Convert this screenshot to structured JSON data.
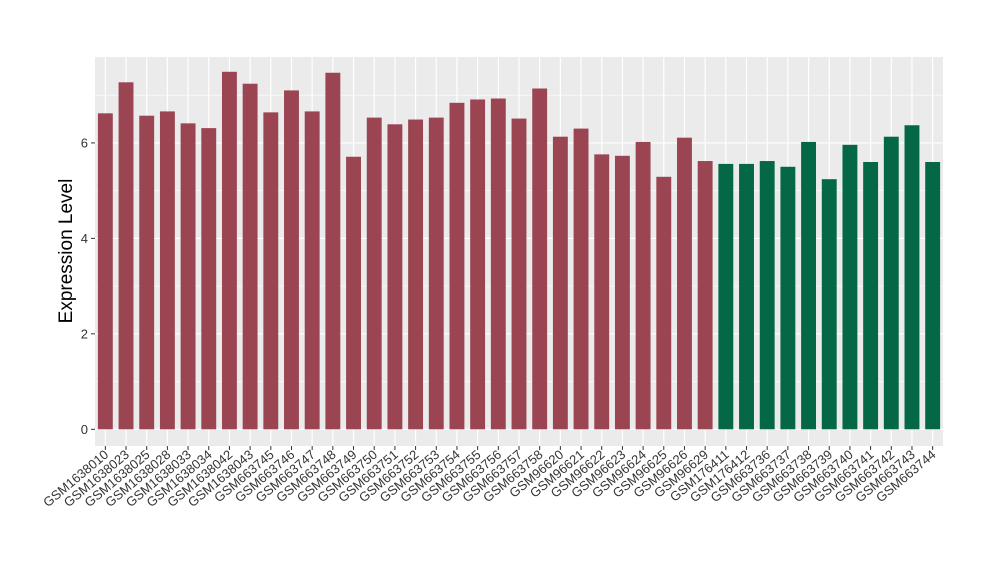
{
  "chart_data": {
    "type": "bar",
    "title": "",
    "xlabel": "",
    "ylabel": "Expression Level",
    "ylim": [
      -0.35,
      7.8
    ],
    "yticks": [
      0,
      2,
      4,
      6
    ],
    "grid": true,
    "background": "#ebebeb",
    "grid_color": "#ffffff",
    "colors": {
      "group1": "#9b4452",
      "group2": "#046746"
    },
    "categories": [
      "GSM1638010",
      "GSM1638023",
      "GSM1638025",
      "GSM1638028",
      "GSM1638033",
      "GSM1638034",
      "GSM1638042",
      "GSM1638043",
      "GSM663745",
      "GSM663746",
      "GSM663747",
      "GSM663748",
      "GSM663749",
      "GSM663750",
      "GSM663751",
      "GSM663752",
      "GSM663753",
      "GSM663754",
      "GSM663755",
      "GSM663756",
      "GSM663757",
      "GSM663758",
      "GSM96620",
      "GSM96621",
      "GSM96622",
      "GSM96623",
      "GSM96624",
      "GSM96625",
      "GSM96626",
      "GSM96629",
      "GSM176411",
      "GSM176412",
      "GSM663736",
      "GSM663737",
      "GSM663738",
      "GSM663739",
      "GSM663740",
      "GSM663741",
      "GSM663742",
      "GSM663743",
      "GSM663744"
    ],
    "values": [
      6.62,
      7.27,
      6.57,
      6.66,
      6.41,
      6.31,
      7.49,
      7.24,
      6.64,
      7.1,
      6.66,
      7.47,
      5.71,
      6.53,
      6.39,
      6.49,
      6.53,
      6.84,
      6.91,
      6.93,
      6.51,
      7.14,
      6.13,
      6.3,
      5.76,
      5.73,
      6.02,
      5.29,
      6.11,
      5.62,
      5.56,
      5.56,
      5.62,
      5.5,
      6.02,
      5.24,
      5.96,
      5.6,
      6.13,
      6.37,
      5.6
    ],
    "groups": [
      1,
      1,
      1,
      1,
      1,
      1,
      1,
      1,
      1,
      1,
      1,
      1,
      1,
      1,
      1,
      1,
      1,
      1,
      1,
      1,
      1,
      1,
      1,
      1,
      1,
      1,
      1,
      1,
      1,
      1,
      2,
      2,
      2,
      2,
      2,
      2,
      2,
      2,
      2,
      2,
      2
    ]
  }
}
